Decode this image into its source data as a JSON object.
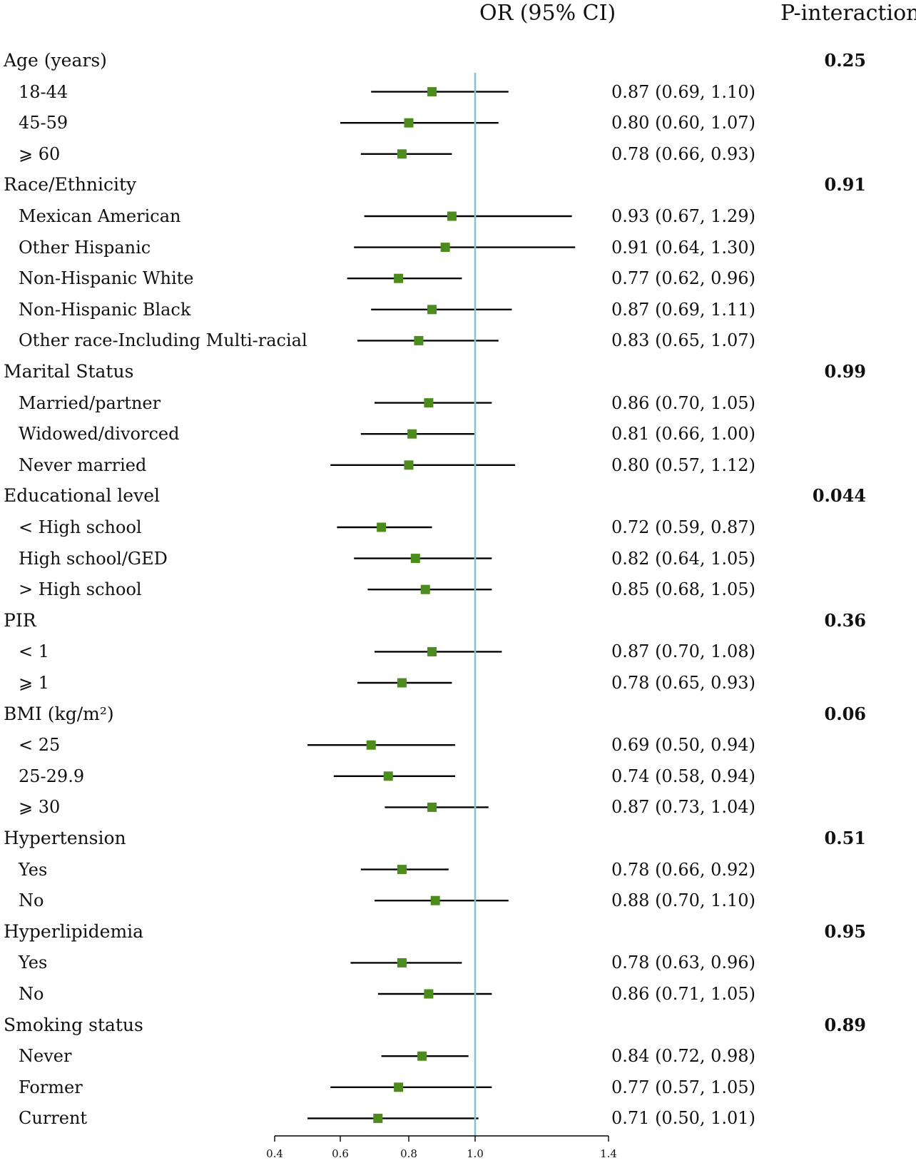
{
  "headers": {
    "or": "OR (95% CI)",
    "p": "P-interaction"
  },
  "chart_data": {
    "type": "forest",
    "reference_line": 1.0,
    "xlim": [
      0.4,
      1.4
    ],
    "xticks": [
      0.4,
      0.6,
      0.8,
      1.0,
      1.4
    ],
    "xtick_labels": [
      "0.4",
      "0.6",
      "0.8",
      "1.0",
      "1.4"
    ],
    "colors": {
      "marker": "#4c8c1c",
      "reference": "#7fc6d2",
      "line": "#000000"
    },
    "groups": [
      {
        "label": "Age (years)",
        "p_interaction": "0.25",
        "rows": [
          {
            "label": "18-44",
            "or": 0.87,
            "lo": 0.69,
            "hi": 1.1,
            "text": "0.87 (0.69, 1.10)"
          },
          {
            "label": "45-59",
            "or": 0.8,
            "lo": 0.6,
            "hi": 1.07,
            "text": "0.80 (0.60, 1.07)"
          },
          {
            "label": "⩾ 60",
            "or": 0.78,
            "lo": 0.66,
            "hi": 0.93,
            "text": "0.78 (0.66, 0.93)"
          }
        ]
      },
      {
        "label": "Race/Ethnicity",
        "p_interaction": "0.91",
        "rows": [
          {
            "label": "Mexican American",
            "or": 0.93,
            "lo": 0.67,
            "hi": 1.29,
            "text": "0.93 (0.67, 1.29)"
          },
          {
            "label": "Other Hispanic",
            "or": 0.91,
            "lo": 0.64,
            "hi": 1.3,
            "text": "0.91 (0.64, 1.30)"
          },
          {
            "label": "Non-Hispanic White",
            "or": 0.77,
            "lo": 0.62,
            "hi": 0.96,
            "text": "0.77 (0.62, 0.96)"
          },
          {
            "label": "Non-Hispanic Black",
            "or": 0.87,
            "lo": 0.69,
            "hi": 1.11,
            "text": "0.87 (0.69, 1.11)"
          },
          {
            "label": "Other race-Including Multi-racial",
            "or": 0.83,
            "lo": 0.65,
            "hi": 1.07,
            "text": "0.83 (0.65, 1.07)"
          }
        ]
      },
      {
        "label": "Marital Status",
        "p_interaction": "0.99",
        "rows": [
          {
            "label": "Married/partner",
            "or": 0.86,
            "lo": 0.7,
            "hi": 1.05,
            "text": "0.86 (0.70, 1.05)"
          },
          {
            "label": "Widowed/divorced",
            "or": 0.81,
            "lo": 0.66,
            "hi": 1.0,
            "text": "0.81 (0.66, 1.00)"
          },
          {
            "label": "Never married",
            "or": 0.8,
            "lo": 0.57,
            "hi": 1.12,
            "text": "0.80 (0.57, 1.12)"
          }
        ]
      },
      {
        "label": "Educational level",
        "p_interaction": "0.044",
        "rows": [
          {
            "label": "< High school",
            "or": 0.72,
            "lo": 0.59,
            "hi": 0.87,
            "text": "0.72 (0.59, 0.87)"
          },
          {
            "label": "High school/GED",
            "or": 0.82,
            "lo": 0.64,
            "hi": 1.05,
            "text": "0.82 (0.64, 1.05)"
          },
          {
            "label": "> High school",
            "or": 0.85,
            "lo": 0.68,
            "hi": 1.05,
            "text": "0.85 (0.68, 1.05)"
          }
        ]
      },
      {
        "label": "PIR",
        "p_interaction": "0.36",
        "rows": [
          {
            "label": "< 1",
            "or": 0.87,
            "lo": 0.7,
            "hi": 1.08,
            "text": "0.87 (0.70, 1.08)"
          },
          {
            "label": "⩾ 1",
            "or": 0.78,
            "lo": 0.65,
            "hi": 0.93,
            "text": "0.78 (0.65, 0.93)"
          }
        ]
      },
      {
        "label": "BMI (kg/m²)",
        "p_interaction": "0.06",
        "rows": [
          {
            "label": "< 25",
            "or": 0.69,
            "lo": 0.5,
            "hi": 0.94,
            "text": "0.69 (0.50, 0.94)"
          },
          {
            "label": "25-29.9",
            "or": 0.74,
            "lo": 0.58,
            "hi": 0.94,
            "text": "0.74 (0.58, 0.94)"
          },
          {
            "label": "⩾ 30",
            "or": 0.87,
            "lo": 0.73,
            "hi": 1.04,
            "text": "0.87 (0.73, 1.04)"
          }
        ]
      },
      {
        "label": "Hypertension",
        "p_interaction": "0.51",
        "rows": [
          {
            "label": "Yes",
            "or": 0.78,
            "lo": 0.66,
            "hi": 0.92,
            "text": "0.78 (0.66, 0.92)"
          },
          {
            "label": "No",
            "or": 0.88,
            "lo": 0.7,
            "hi": 1.1,
            "text": "0.88 (0.70, 1.10)"
          }
        ]
      },
      {
        "label": "Hyperlipidemia",
        "p_interaction": "0.95",
        "rows": [
          {
            "label": "Yes",
            "or": 0.78,
            "lo": 0.63,
            "hi": 0.96,
            "text": "0.78 (0.63, 0.96)"
          },
          {
            "label": "No",
            "or": 0.86,
            "lo": 0.71,
            "hi": 1.05,
            "text": "0.86 (0.71, 1.05)"
          }
        ]
      },
      {
        "label": "Smoking status",
        "p_interaction": "0.89",
        "rows": [
          {
            "label": "Never",
            "or": 0.84,
            "lo": 0.72,
            "hi": 0.98,
            "text": "0.84 (0.72, 0.98)"
          },
          {
            "label": "Former",
            "or": 0.77,
            "lo": 0.57,
            "hi": 1.05,
            "text": "0.77 (0.57, 1.05)"
          },
          {
            "label": "Current",
            "or": 0.71,
            "lo": 0.5,
            "hi": 1.01,
            "text": "0.71 (0.50, 1.01)"
          }
        ]
      }
    ]
  }
}
